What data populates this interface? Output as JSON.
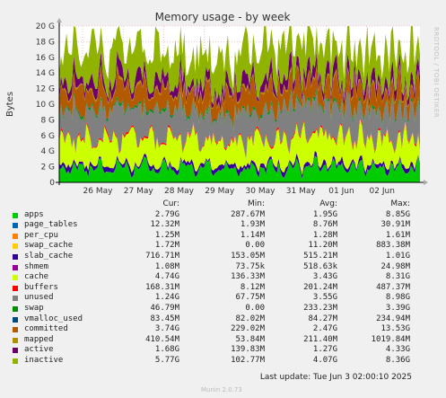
{
  "chart_data": {
    "type": "area",
    "title": "Memory usage - by week",
    "ylabel": "Bytes",
    "side_label": "RRDTOOL / TOBI OETIKER",
    "y_ticks": [
      "0",
      "2 G",
      "4 G",
      "6 G",
      "8 G",
      "10 G",
      "12 G",
      "14 G",
      "16 G",
      "18 G",
      "20 G"
    ],
    "ylim": [
      0,
      20
    ],
    "x_ticks": [
      "26 May",
      "27 May",
      "28 May",
      "29 May",
      "30 May",
      "31 May",
      "01 Jun",
      "02 Jun"
    ],
    "grid": true,
    "columns": [
      "Cur:",
      "Min:",
      "Avg:",
      "Max:"
    ],
    "series": [
      {
        "name": "apps",
        "color": "#00cc00",
        "cur": "2.79G",
        "min": "287.67M",
        "avg": "1.95G",
        "max": "8.85G"
      },
      {
        "name": "page_tables",
        "color": "#0066b3",
        "cur": "12.32M",
        "min": "1.93M",
        "avg": "8.76M",
        "max": "30.91M"
      },
      {
        "name": "per_cpu",
        "color": "#ff8000",
        "cur": "1.25M",
        "min": "1.14M",
        "avg": "1.28M",
        "max": "1.61M"
      },
      {
        "name": "swap_cache",
        "color": "#ffcc00",
        "cur": "1.72M",
        "min": "0.00",
        "avg": "11.20M",
        "max": "883.38M"
      },
      {
        "name": "slab_cache",
        "color": "#330099",
        "cur": "716.71M",
        "min": "153.05M",
        "avg": "515.21M",
        "max": "1.01G"
      },
      {
        "name": "shmem",
        "color": "#990099",
        "cur": "1.08M",
        "min": "73.75k",
        "avg": "518.63k",
        "max": "24.98M"
      },
      {
        "name": "cache",
        "color": "#ccff00",
        "cur": "4.74G",
        "min": "136.33M",
        "avg": "3.43G",
        "max": "8.31G"
      },
      {
        "name": "buffers",
        "color": "#ff0000",
        "cur": "168.31M",
        "min": "8.12M",
        "avg": "201.24M",
        "max": "487.37M"
      },
      {
        "name": "unused",
        "color": "#808080",
        "cur": "1.24G",
        "min": "67.75M",
        "avg": "3.55G",
        "max": "8.98G"
      },
      {
        "name": "swap",
        "color": "#008f00",
        "cur": "46.79M",
        "min": "0.00",
        "avg": "233.23M",
        "max": "3.39G"
      },
      {
        "name": "vmalloc_used",
        "color": "#00487d",
        "cur": "83.45M",
        "min": "82.02M",
        "avg": "84.27M",
        "max": "234.94M"
      },
      {
        "name": "committed",
        "color": "#b35a00",
        "cur": "3.74G",
        "min": "229.02M",
        "avg": "2.47G",
        "max": "13.53G"
      },
      {
        "name": "mapped",
        "color": "#b38f00",
        "cur": "410.54M",
        "min": "53.84M",
        "avg": "211.40M",
        "max": "1019.84M"
      },
      {
        "name": "active",
        "color": "#6b006b",
        "cur": "1.68G",
        "min": "139.83M",
        "avg": "1.27G",
        "max": "4.33G"
      },
      {
        "name": "inactive",
        "color": "#8fb300",
        "cur": "5.77G",
        "min": "102.77M",
        "avg": "4.07G",
        "max": "8.36G"
      }
    ]
  },
  "swatch_colors": [
    "#00cc00",
    "#0066b3",
    "#ff8000",
    "#ffcc00",
    "#330099",
    "#990099",
    "#ccff00",
    "#ff0000",
    "#808080",
    "#008f00",
    "#00487d",
    "#b35a00",
    "#b38f00",
    "#6b006b",
    "#8fb300"
  ],
  "last_update": "Last update: Tue Jun  3 02:00:10 2025",
  "footer": "Munin 2.0.73"
}
